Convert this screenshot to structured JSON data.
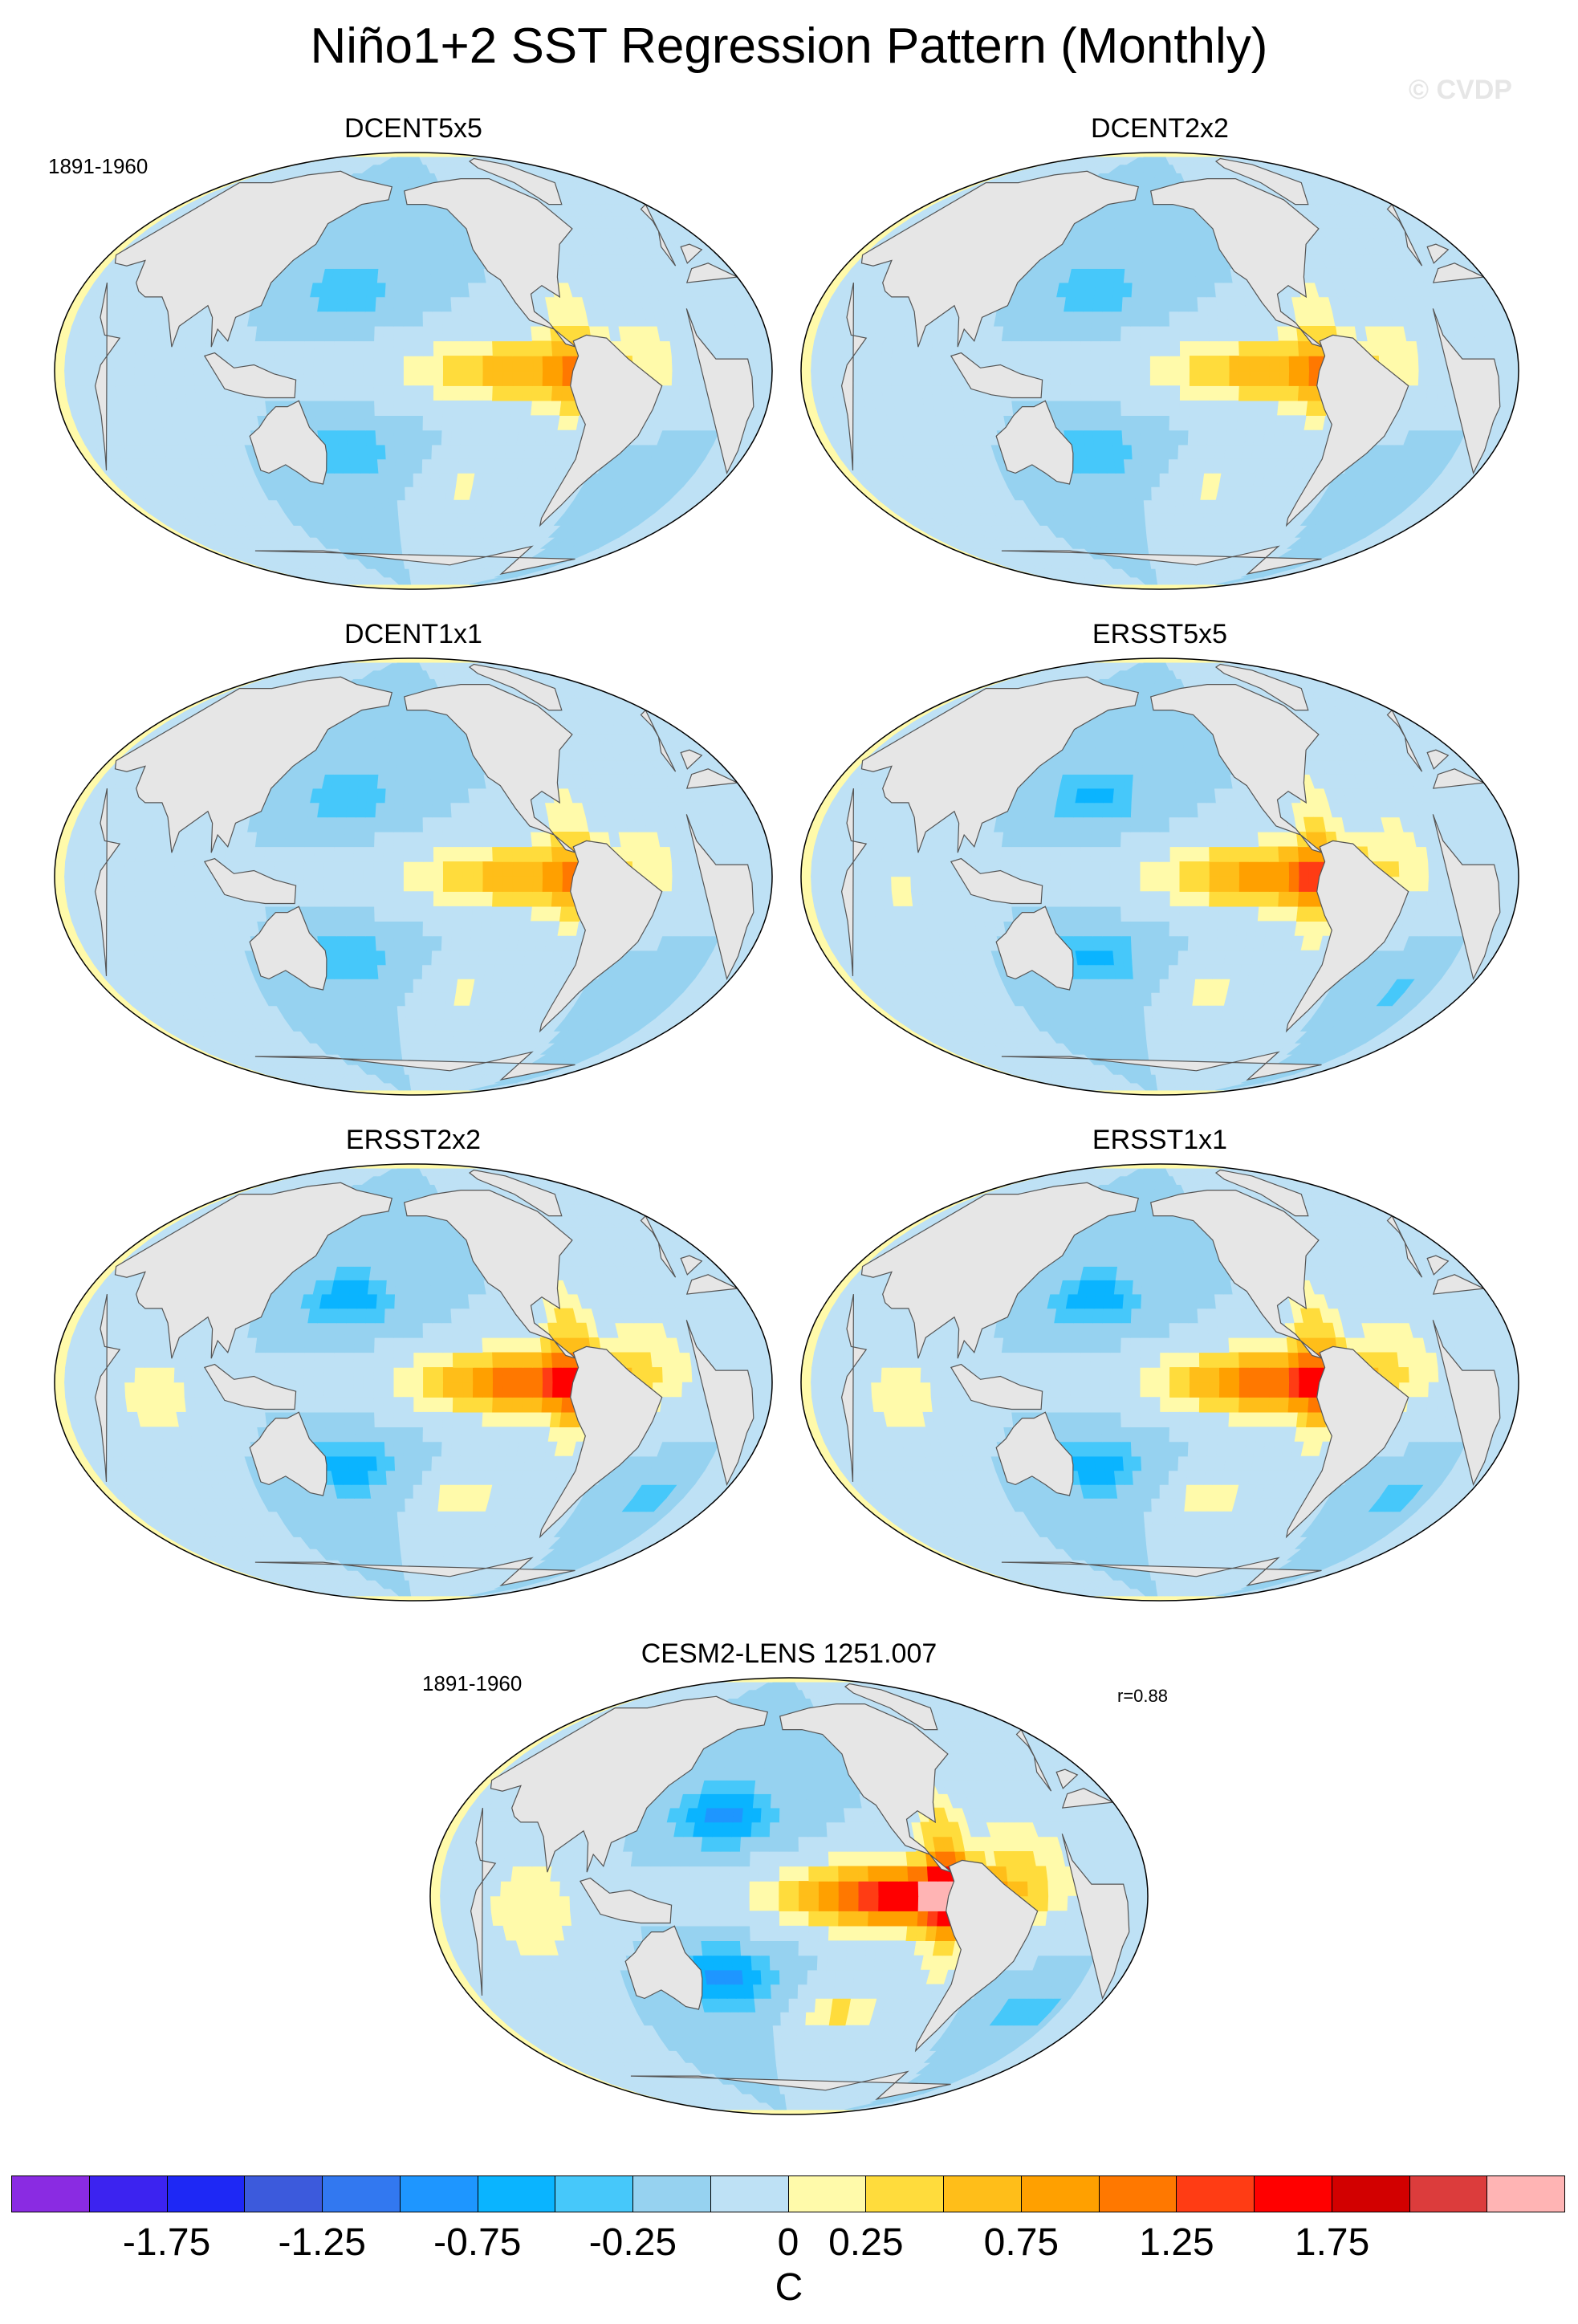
{
  "chart_data": {
    "type": "heatmap",
    "title": "Niño1+2 SST Regression Pattern (Monthly)",
    "watermark": "© CVDP",
    "units": "C",
    "period": "1891-1960",
    "colorbar": {
      "colors": [
        "#8a2be2",
        "#3c23f0",
        "#1e28f5",
        "#3c5adc",
        "#3278f0",
        "#1e96ff",
        "#0ab4ff",
        "#46c8fa",
        "#96d2f0",
        "#bee1f5",
        "#fffaaa",
        "#ffdc3c",
        "#ffbe19",
        "#ffa000",
        "#ff7800",
        "#ff3c14",
        "#ff0000",
        "#d20000",
        "#dc3c3c",
        "#ffb4b4"
      ],
      "levels": [
        -2,
        -1.75,
        -1.5,
        -1.25,
        -1,
        -0.75,
        -0.5,
        -0.25,
        0,
        0.25,
        0.5,
        0.75,
        1,
        1.25,
        1.5,
        1.75,
        2
      ],
      "tick_labels": [
        "-1.75",
        "-1.25",
        "-0.75",
        "-0.25",
        "0",
        "0.25",
        "0.75",
        "1.25",
        "1.75"
      ]
    },
    "panels": [
      {
        "name": "DCENT5x5",
        "period_label": "1891-1960",
        "max_anomaly": 1.0
      },
      {
        "name": "DCENT2x2",
        "max_anomaly": 1.0
      },
      {
        "name": "DCENT1x1",
        "max_anomaly": 1.0
      },
      {
        "name": "ERSST5x5",
        "max_anomaly": 1.25
      },
      {
        "name": "ERSST2x2",
        "max_anomaly": 1.5
      },
      {
        "name": "ERSST1x1",
        "max_anomaly": 1.5
      },
      {
        "name": "CESM2-LENS 1251.007",
        "period_label": "1891-1960",
        "pattern_correlation": "r=0.88",
        "max_anomaly": 2.0
      }
    ]
  }
}
